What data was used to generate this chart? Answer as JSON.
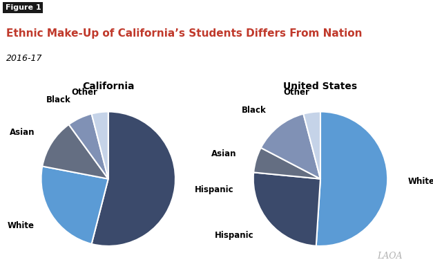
{
  "title": "Ethnic Make-Up of California’s Students Differs From Nation",
  "subtitle": "2016-17",
  "figure_label": "Figure 1",
  "california": {
    "title": "California",
    "labels": [
      "Hispanic",
      "White",
      "Asian",
      "Black",
      "Other"
    ],
    "values": [
      54,
      24,
      12,
      6,
      4
    ],
    "colors": [
      "#3b4a6b",
      "#5b9bd5",
      "#646e82",
      "#8091b5",
      "#c5d3e8"
    ],
    "startangle": 90,
    "label_coords": {
      "Hispanic": [
        1.22,
        0.05,
        "left"
      ],
      "White": [
        -1.22,
        0.38,
        "right"
      ],
      "Asian": [
        -1.22,
        -0.12,
        "right"
      ],
      "Black": [
        -1.1,
        -0.5,
        "right"
      ],
      "Other": [
        -0.6,
        -0.82,
        "center"
      ]
    }
  },
  "us": {
    "title": "United States",
    "labels": [
      "White",
      "Hispanic",
      "Asian",
      "Black",
      "Other"
    ],
    "values": [
      50,
      25,
      6,
      13,
      4
    ],
    "colors": [
      "#5b9bd5",
      "#3b4a6b",
      "#646e82",
      "#8091b5",
      "#c5d3e8"
    ],
    "startangle": 90,
    "label_coords": {
      "White": [
        1.22,
        0.02,
        "left"
      ],
      "Hispanic": [
        -1.18,
        0.3,
        "right"
      ],
      "Asian": [
        -1.2,
        -0.18,
        "right"
      ],
      "Black": [
        -1.05,
        -0.58,
        "right"
      ],
      "Other": [
        -0.2,
        -0.9,
        "center"
      ]
    }
  },
  "background_color": "#ffffff",
  "title_color": "#c0392b",
  "subtitle_color": "#000000",
  "figure_label_bg": "#1a1a1a",
  "figure_label_color": "#ffffff",
  "watermark": "LAOA",
  "watermark_color": "#b0b0b0",
  "label_fontsize": 8.5,
  "title_fontsize": 11,
  "subtitle_fontsize": 9,
  "pie_title_fontsize": 10
}
